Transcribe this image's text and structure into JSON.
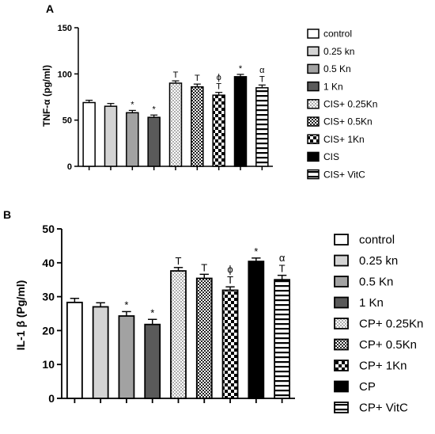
{
  "patterns": [
    "open",
    "light",
    "medium",
    "dark",
    "dots",
    "grid",
    "checker",
    "solid",
    "hstripe"
  ],
  "chart_data": [
    {
      "type": "bar",
      "panel_label": "A",
      "title": "",
      "xlabel": "",
      "ylabel": "TNF-α (pg/ml)",
      "ylim": [
        0,
        150
      ],
      "yticks": [
        "0",
        "50",
        "100",
        "150"
      ],
      "grid": false,
      "legend_position": "right",
      "categories": [
        "control",
        "0.25 kn",
        "0.5 Kn",
        "1 Kn",
        "CIS+ 0.25Kn",
        "CIS+ 0.5Kn",
        "CIS+ 1Kn",
        "CIS",
        "CIS+ VitC"
      ],
      "values": [
        69,
        65,
        58,
        53,
        90,
        86,
        77,
        97,
        85
      ],
      "errors": [
        2.5,
        3,
        2.5,
        2.5,
        2.5,
        3,
        3,
        2.5,
        3
      ],
      "annotations": [
        "",
        "",
        "*",
        "*",
        "T",
        "T",
        "ϕ\nT",
        "*",
        "α\nT"
      ]
    },
    {
      "type": "bar",
      "panel_label": "B",
      "title": "",
      "xlabel": "",
      "ylabel": "IL-1 β (Pg/ml)",
      "ylim": [
        0,
        50
      ],
      "yticks": [
        "0",
        "10",
        "20",
        "30",
        "40",
        "50"
      ],
      "grid": false,
      "legend_position": "right",
      "categories": [
        "control",
        "0.25 kn",
        "0.5 Kn",
        "1 Kn",
        "CP+ 0.25Kn",
        "CP+ 0.5Kn",
        "CP+ 1Kn",
        "CP",
        "CP+ VitC"
      ],
      "values": [
        28.3,
        27,
        24.3,
        21.8,
        37.6,
        35.4,
        31.9,
        40.4,
        35
      ],
      "errors": [
        1.2,
        1.2,
        1.3,
        1.5,
        1,
        1.2,
        1,
        1,
        1.3
      ],
      "annotations": [
        "",
        "",
        "*",
        "*",
        "T",
        "T",
        "ϕ\nT",
        "*",
        "α\nT"
      ]
    }
  ]
}
